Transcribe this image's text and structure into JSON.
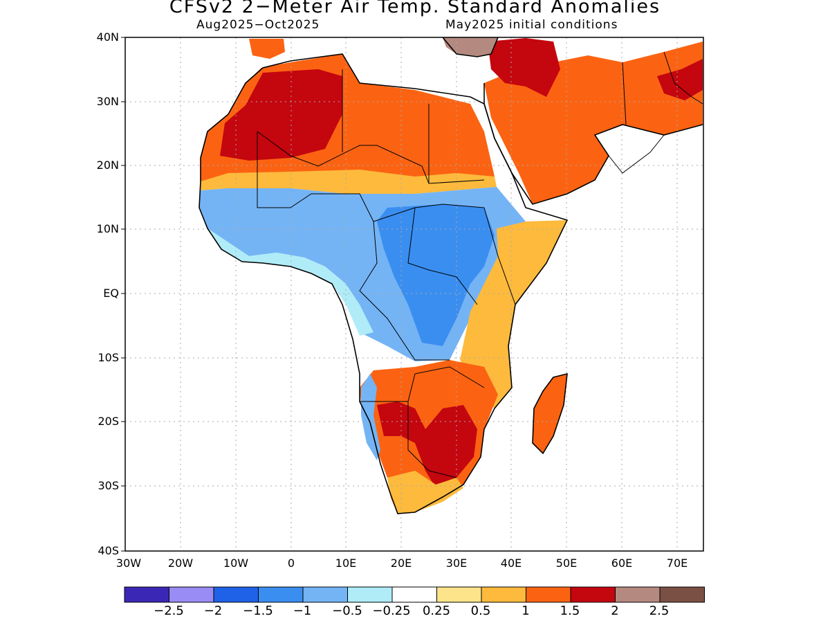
{
  "title": "CFSv2 2−Meter Air Temp. Standard Anomalies",
  "subtitle_left": "Aug2025−Oct2025",
  "subtitle_right": "May2025 initial conditions",
  "y_axis_labels": [
    "40N",
    "30N",
    "20N",
    "10N",
    "EQ",
    "10S",
    "20S",
    "30S",
    "40S"
  ],
  "x_axis_labels": [
    "30W",
    "20W",
    "10W",
    "0",
    "10E",
    "20E",
    "30E",
    "40E",
    "50E",
    "60E",
    "70E"
  ],
  "colorbar": {
    "colors": [
      "#3b27b5",
      "#9a8cf5",
      "#1f62e8",
      "#3a8ef0",
      "#74b4f5",
      "#b0ecf8",
      "#ffffff",
      "#fde38a",
      "#fdba3c",
      "#fb6312",
      "#c4060f",
      "#b48a80",
      "#7b5044"
    ],
    "labels": [
      "−2.5",
      "−2",
      "−1.5",
      "−1",
      "−0.5",
      "−0.25",
      "0.25",
      "0.5",
      "1",
      "1.5",
      "2",
      "2.5"
    ]
  }
}
